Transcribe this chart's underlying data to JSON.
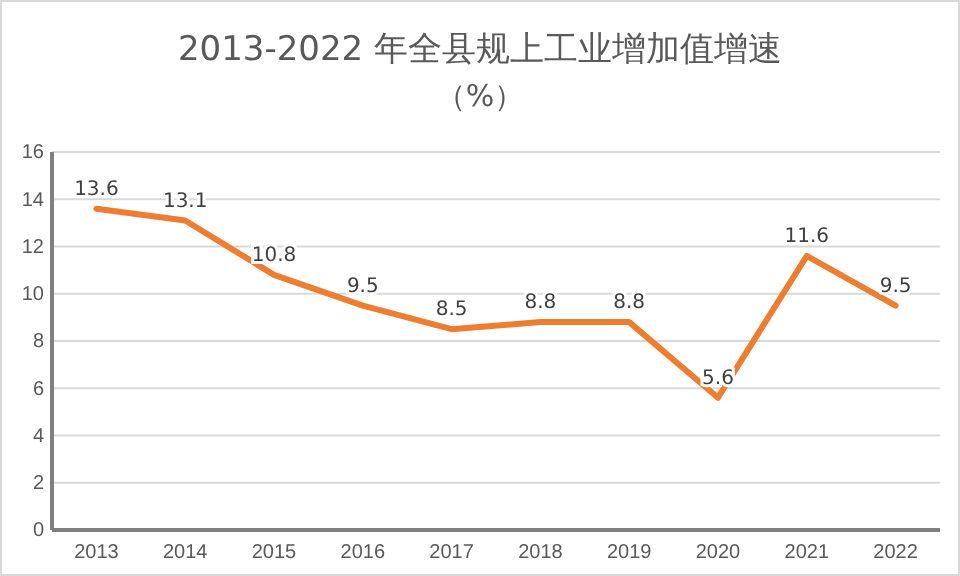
{
  "chart_data": {
    "type": "line",
    "title": "2013-2022 年全县规上工业增加值增速",
    "subtitle": "（%）",
    "categories": [
      "2013",
      "2014",
      "2015",
      "2016",
      "2017",
      "2018",
      "2019",
      "2020",
      "2021",
      "2022"
    ],
    "series": [
      {
        "color": "#ed7d31",
        "values": [
          13.6,
          13.1,
          10.8,
          9.5,
          8.5,
          8.8,
          8.8,
          5.6,
          11.6,
          9.5
        ]
      }
    ],
    "ylim": [
      0,
      16
    ],
    "yticks": [
      0,
      2,
      4,
      6,
      8,
      10,
      12,
      14,
      16
    ],
    "grid": "y",
    "data_labels": true,
    "marker": "none",
    "line_style": "solid"
  }
}
